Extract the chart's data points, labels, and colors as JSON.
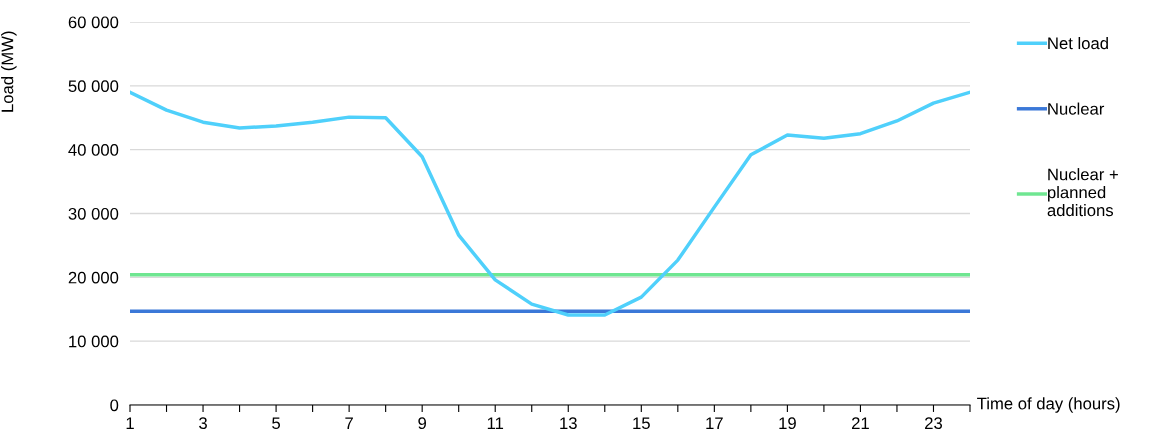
{
  "chart_data": {
    "type": "line",
    "xlabel": "Time of day (hours)",
    "ylabel": "Load (MW)",
    "x": [
      1,
      2,
      3,
      4,
      5,
      6,
      7,
      8,
      9,
      10,
      11,
      12,
      13,
      14,
      15,
      16,
      17,
      18,
      19,
      20,
      21,
      22,
      23,
      24
    ],
    "series": [
      {
        "name": "Net load",
        "color": "#4fd0fb",
        "values": [
          49000,
          46200,
          44300,
          43400,
          43700,
          44300,
          45100,
          45000,
          38900,
          26600,
          19600,
          15800,
          14100,
          14100,
          16900,
          22700,
          31000,
          39200,
          42300,
          41800,
          42500,
          44500,
          47300,
          49000
        ]
      },
      {
        "name": "Nuclear",
        "color": "#3b78d8",
        "values": [
          14700,
          14700,
          14700,
          14700,
          14700,
          14700,
          14700,
          14700,
          14700,
          14700,
          14700,
          14700,
          14700,
          14700,
          14700,
          14700,
          14700,
          14700,
          14700,
          14700,
          14700,
          14700,
          14700,
          14700
        ]
      },
      {
        "name": "Nuclear +\nplanned\nadditions",
        "color": "#6fe691",
        "values": [
          20400,
          20400,
          20400,
          20400,
          20400,
          20400,
          20400,
          20400,
          20400,
          20400,
          20400,
          20400,
          20400,
          20400,
          20400,
          20400,
          20400,
          20400,
          20400,
          20400,
          20400,
          20400,
          20400,
          20400
        ]
      }
    ],
    "xlim": [
      1,
      24
    ],
    "xticks": [
      1,
      {
        "value": 2,
        "label": null
      },
      3,
      {
        "value": 4,
        "label": null
      },
      5,
      {
        "value": 6,
        "label": null
      },
      7,
      {
        "value": 8,
        "label": null
      },
      9,
      {
        "value": 10,
        "label": null
      },
      11,
      {
        "value": 12,
        "label": null
      },
      13,
      {
        "value": 14,
        "label": null
      },
      15,
      {
        "value": 16,
        "label": null
      },
      17,
      {
        "value": 18,
        "label": null
      },
      19,
      {
        "value": 20,
        "label": null
      },
      21,
      {
        "value": 22,
        "label": null
      },
      23,
      {
        "value": 24,
        "label": null
      }
    ],
    "ylim": [
      0,
      60000
    ],
    "yticks": [
      0,
      {
        "value": 10000,
        "label": "10 000"
      },
      {
        "value": 20000,
        "label": "20 000"
      },
      {
        "value": 30000,
        "label": "30 000"
      },
      {
        "value": 40000,
        "label": "40 000"
      },
      {
        "value": 50000,
        "label": "50 000"
      },
      {
        "value": 60000,
        "label": "60 000"
      }
    ],
    "grid": "y",
    "legend": "right",
    "marker": "none",
    "line_style": "solid"
  }
}
